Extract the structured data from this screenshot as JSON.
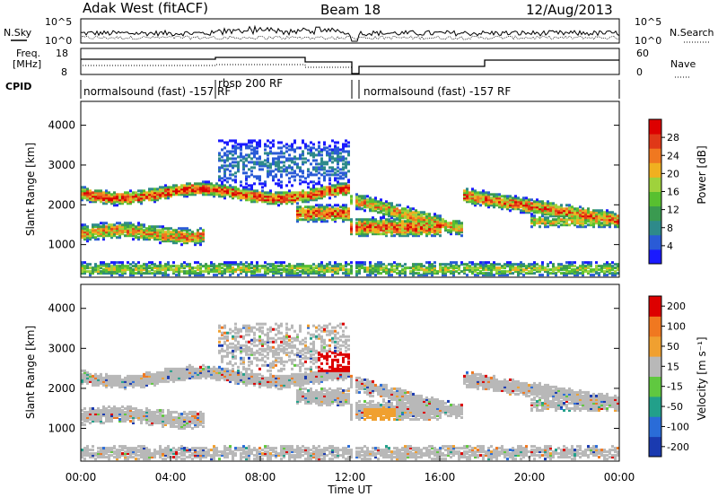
{
  "header": {
    "station": "Adak West (fitACF)",
    "beam": "Beam 18",
    "date": "12/Aug/2013"
  },
  "top_panels": {
    "nsky_label": "N.Sky",
    "nsky_ticks": [
      "10^5",
      "10^0"
    ],
    "nsearch_label": "N.Search",
    "nsearch_ticks": [
      "10^5",
      "10^0"
    ],
    "freq_label_1": "Freq.",
    "freq_label_2": "[MHz]",
    "freq_ticks": [
      "18",
      "8"
    ],
    "nave_label": "Nave",
    "nave_ticks": [
      "60",
      "0"
    ],
    "cpid_label": "CPID",
    "cpid_segments": [
      {
        "label": "normalsound (fast) -157 RF",
        "start": 0.0,
        "end": 6.0
      },
      {
        "label": "rbsp 200 RF",
        "start": 6.0,
        "end": 12.0
      },
      {
        "label": "normalsound (fast) -157 RF",
        "start": 12.1,
        "end": 24.0
      }
    ]
  },
  "chart_data": [
    {
      "type": "heatmap",
      "title": "",
      "xlabel": "",
      "ylabel": "Slant Range [km]",
      "x_ticks": [
        "00:00",
        "04:00",
        "08:00",
        "12:00",
        "16:00",
        "20:00",
        "00:00"
      ],
      "xlim_hours": [
        0,
        24
      ],
      "y_ticks": [
        1000,
        2000,
        3000,
        4000
      ],
      "ylim": [
        180,
        4600
      ],
      "colorbar": {
        "label": "Power [dB]",
        "ticks": [
          4,
          8,
          12,
          16,
          20,
          24,
          28
        ],
        "colors": [
          "#1a1aff",
          "#2a5bd6",
          "#2e8a8a",
          "#3a9a50",
          "#58c030",
          "#9fd23c",
          "#f0b020",
          "#f07820",
          "#e03818",
          "#dd0000"
        ]
      }
    },
    {
      "type": "heatmap",
      "title": "",
      "xlabel": "Time UT",
      "ylabel": "Slant Range [km]",
      "x_ticks": [
        "00:00",
        "04:00",
        "08:00",
        "12:00",
        "16:00",
        "20:00",
        "00:00"
      ],
      "xlim_hours": [
        0,
        24
      ],
      "y_ticks": [
        1000,
        2000,
        3000,
        4000
      ],
      "ylim": [
        180,
        4600
      ],
      "colorbar": {
        "label": "Velocity [m s⁻¹]",
        "ticks": [
          200,
          100,
          50,
          15,
          -15,
          -50,
          -100,
          -200
        ],
        "colors": [
          "#1a3ab0",
          "#2a6cd8",
          "#22a08a",
          "#60c840",
          "#b8b8b8",
          "#f0a030",
          "#f07820",
          "#dd0000"
        ]
      }
    }
  ]
}
